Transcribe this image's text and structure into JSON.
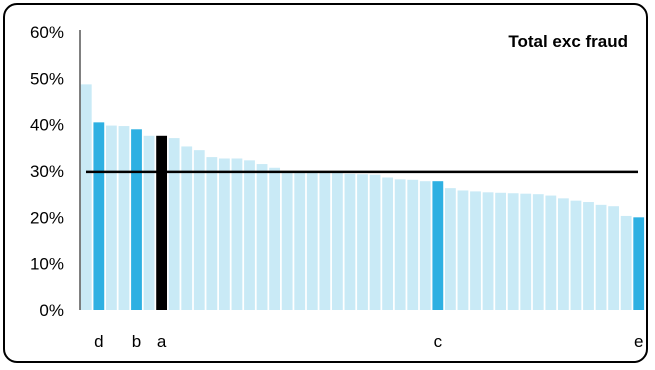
{
  "chart_data": {
    "type": "bar",
    "title": "Total exc fraud",
    "y_axis": {
      "min": 0,
      "max": 0.6,
      "tick_labels": [
        "0%",
        "10%",
        "20%",
        "30%",
        "40%",
        "50%",
        "60%"
      ]
    },
    "reference_line": {
      "value": 0.298
    },
    "categories": [
      "",
      "d",
      "",
      "",
      "b",
      "",
      "a",
      "",
      "",
      "",
      "",
      "",
      "",
      "",
      "",
      "",
      "",
      "",
      "",
      "",
      "",
      "",
      "",
      "",
      "",
      "",
      "",
      "",
      "",
      "",
      "",
      "",
      "",
      "",
      "",
      "",
      "",
      "",
      "",
      "",
      "",
      "",
      "",
      "",
      "e"
    ],
    "values": [
      0.487,
      0.405,
      0.398,
      0.397,
      0.39,
      0.376,
      0.376,
      0.371,
      0.353,
      0.345,
      0.33,
      0.327,
      0.327,
      0.323,
      0.315,
      0.307,
      0.299,
      0.297,
      0.297,
      0.296,
      0.296,
      0.294,
      0.293,
      0.292,
      0.286,
      0.282,
      0.281,
      0.278,
      0.278,
      0.263,
      0.258,
      0.256,
      0.254,
      0.253,
      0.252,
      0.251,
      0.25,
      0.247,
      0.241,
      0.236,
      0.233,
      0.227,
      0.224,
      0.203,
      0.2
    ],
    "extra_labels": [
      {
        "index": 28,
        "label": "c"
      }
    ],
    "highlight_indices": [
      1,
      4,
      28,
      44
    ],
    "focus_index": 6,
    "colors": {
      "bar": "#c9eaf6",
      "highlight": "#2eb0e2",
      "focus": "#000000",
      "reference_line": "#000000"
    },
    "grid": false,
    "legend": "none"
  }
}
